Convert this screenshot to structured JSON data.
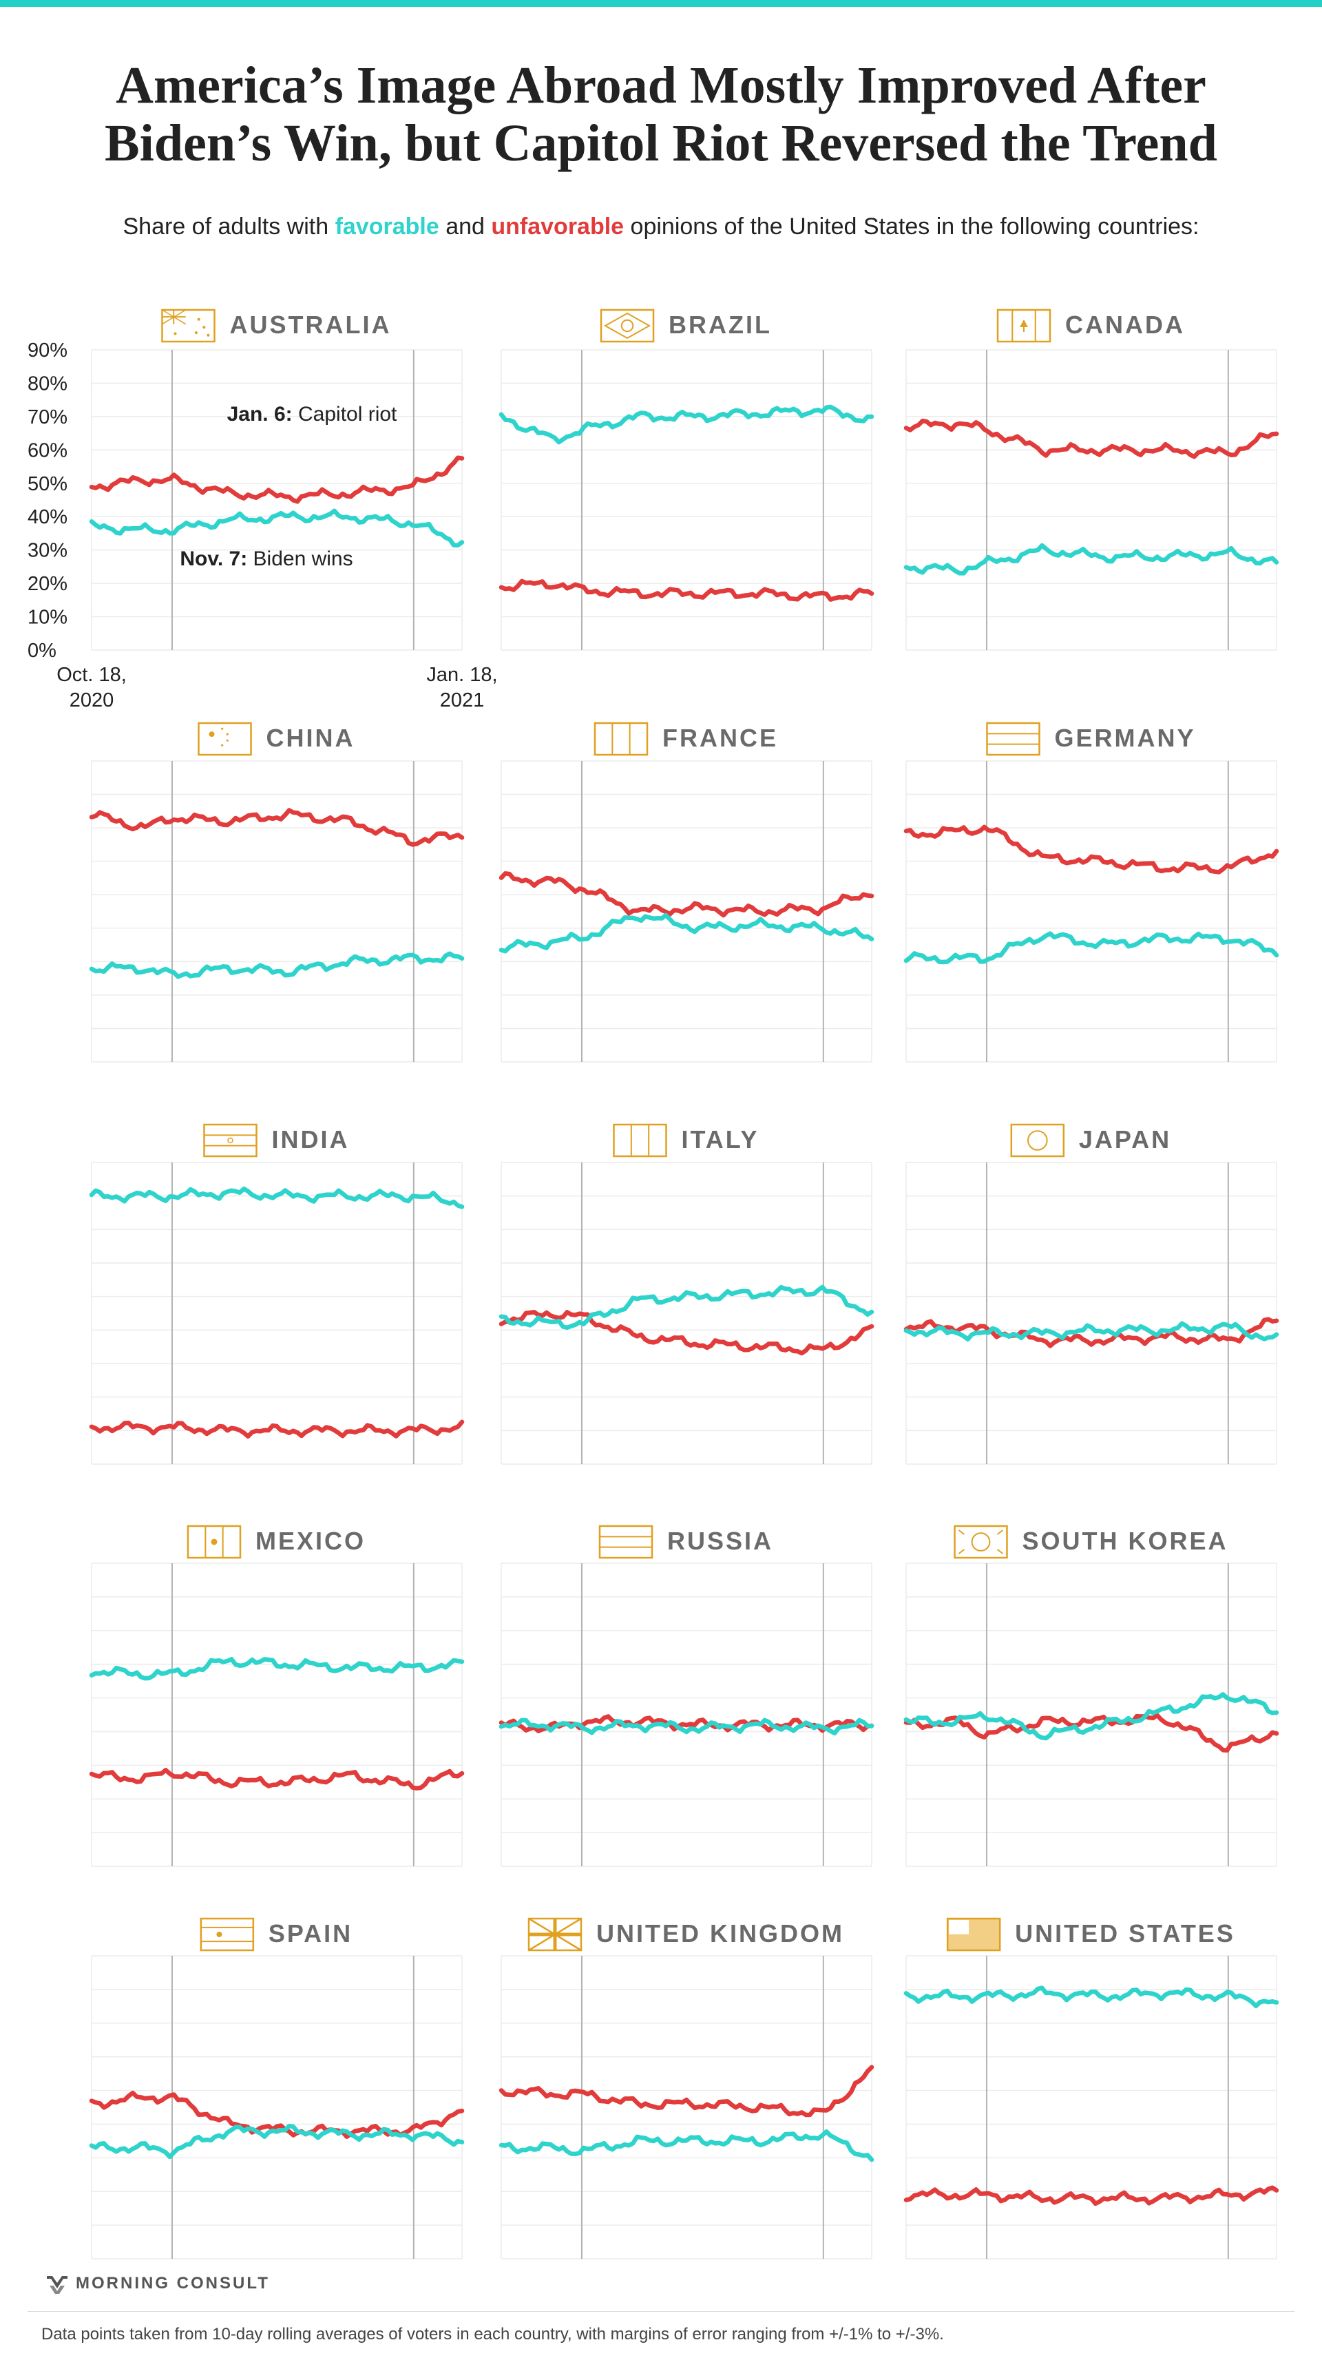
{
  "title_lines": [
    "America’s Image Abroad Mostly Improved After",
    "Biden’s Win, but Capitol Riot Reversed the Trend"
  ],
  "subtitle": {
    "prefix": "Share of adults with ",
    "favorable": "favorable",
    "middle": " and ",
    "unfavorable": "unfavorable",
    "suffix": " opinions of the United States in the following countries:"
  },
  "colors": {
    "favorable": "#2ed3cc",
    "unfavorable": "#e23b3b",
    "accent_bar": "#22d0c8",
    "flag": "#e0a020",
    "country_label": "#6a6a6a",
    "grid": "#ececec",
    "event_line": "#b3b3b3"
  },
  "annotations": {
    "jan6_bold": "Jan. 6:",
    "jan6_text": " Capitol riot",
    "nov7_bold": "Nov. 7:",
    "nov7_text": " Biden wins"
  },
  "logo": {
    "text": "MORNING CONSULT",
    "icon": "morning-consult-logo-icon"
  },
  "footnote": "Data points taken from 10-day rolling averages of voters in each country, with margins of error ranging from +/-1% to +/-3%.",
  "chart_data": {
    "type": "line",
    "ylim": [
      0,
      90
    ],
    "y_ticks": [
      "0%",
      "10%",
      "20%",
      "30%",
      "40%",
      "50%",
      "60%",
      "70%",
      "80%",
      "90%"
    ],
    "x_range": [
      "2020-10-18",
      "2021-01-18"
    ],
    "x_tick_labels": [
      {
        "date": "2020-10-18",
        "line1": "Oct. 18,",
        "line2": "2020"
      },
      {
        "date": "2021-01-18",
        "line1": "Jan. 18,",
        "line2": "2021"
      }
    ],
    "event_dates": [
      "2020-11-07",
      "2021-01-06"
    ],
    "grid": true,
    "sample_dates": [
      "2020-10-18",
      "2020-10-31",
      "2020-11-07",
      "2020-11-21",
      "2020-12-06",
      "2020-12-21",
      "2021-01-06",
      "2021-01-18"
    ],
    "countries": [
      {
        "name": "AUSTRALIA",
        "flag": "australia-flag-icon",
        "favorable": [
          37,
          36,
          36,
          39,
          40,
          40,
          38,
          32
        ],
        "unfavorable": [
          49,
          51,
          51,
          47,
          46,
          47,
          49,
          57
        ]
      },
      {
        "name": "BRAZIL",
        "flag": "brazil-flag-icon",
        "favorable": [
          70,
          63,
          66,
          70,
          70,
          71,
          72,
          69
        ],
        "unfavorable": [
          19,
          20,
          18,
          17,
          17,
          17,
          16,
          17
        ]
      },
      {
        "name": "CANADA",
        "flag": "canada-flag-icon",
        "favorable": [
          25,
          24,
          26,
          30,
          28,
          28,
          29,
          26
        ],
        "unfavorable": [
          67,
          68,
          66,
          60,
          60,
          60,
          59,
          65
        ]
      },
      {
        "name": "CHINA",
        "flag": "china-flag-icon",
        "favorable": [
          28,
          28,
          26,
          28,
          27,
          30,
          31,
          31
        ],
        "unfavorable": [
          74,
          70,
          73,
          72,
          74,
          72,
          66,
          68
        ]
      },
      {
        "name": "FRANCE",
        "flag": "france-flag-icon",
        "favorable": [
          34,
          36,
          37,
          44,
          40,
          41,
          40,
          37
        ],
        "unfavorable": [
          55,
          54,
          52,
          45,
          46,
          45,
          46,
          51
        ]
      },
      {
        "name": "GERMANY",
        "flag": "germany-flag-icon",
        "favorable": [
          31,
          31,
          31,
          38,
          35,
          37,
          37,
          33
        ],
        "unfavorable": [
          68,
          69,
          70,
          61,
          60,
          58,
          58,
          63
        ]
      },
      {
        "name": "INDIA",
        "flag": "india-flag-icon",
        "favorable": [
          80,
          80,
          80,
          81,
          80,
          80,
          80,
          78
        ],
        "unfavorable": [
          11,
          11,
          11,
          10,
          10,
          10,
          10,
          11
        ]
      },
      {
        "name": "ITALY",
        "flag": "italy-flag-icon",
        "favorable": [
          43,
          42,
          42,
          49,
          50,
          51,
          52,
          45
        ],
        "unfavorable": [
          43,
          45,
          44,
          38,
          36,
          35,
          34,
          40
        ]
      },
      {
        "name": "JAPAN",
        "flag": "japan-flag-icon",
        "favorable": [
          40,
          39,
          39,
          39,
          40,
          40,
          41,
          37
        ],
        "unfavorable": [
          41,
          41,
          40,
          37,
          37,
          38,
          37,
          43
        ]
      },
      {
        "name": "MEXICO",
        "flag": "mexico-flag-icon",
        "favorable": [
          58,
          57,
          57,
          61,
          60,
          59,
          59,
          60
        ],
        "unfavorable": [
          27,
          26,
          28,
          25,
          25,
          27,
          24,
          28
        ]
      },
      {
        "name": "RUSSIA",
        "flag": "russia-flag-icon",
        "favorable": [
          42,
          42,
          41,
          42,
          41,
          42,
          41,
          42
        ],
        "unfavorable": [
          42,
          41,
          43,
          43,
          42,
          42,
          42,
          42
        ]
      },
      {
        "name": "SOUTH KOREA",
        "flag": "south-korea-flag-icon",
        "favorable": [
          43,
          43,
          45,
          39,
          42,
          46,
          51,
          46
        ],
        "unfavorable": [
          42,
          43,
          39,
          43,
          43,
          44,
          35,
          40
        ]
      },
      {
        "name": "SPAIN",
        "flag": "spain-flag-icon",
        "favorable": [
          33,
          33,
          32,
          38,
          38,
          37,
          37,
          35
        ],
        "unfavorable": [
          46,
          48,
          48,
          40,
          38,
          38,
          38,
          44
        ]
      },
      {
        "name": "UNITED KINGDOM",
        "flag": "united-kingdom-flag-icon",
        "favorable": [
          33,
          33,
          32,
          35,
          35,
          35,
          37,
          30
        ],
        "unfavorable": [
          50,
          49,
          49,
          46,
          46,
          45,
          43,
          56
        ]
      },
      {
        "name": "UNITED STATES",
        "flag": "united-states-flag-icon",
        "favorable": [
          78,
          78,
          78,
          79,
          78,
          79,
          78,
          76
        ],
        "unfavorable": [
          19,
          19,
          19,
          18,
          18,
          18,
          19,
          20
        ]
      }
    ]
  }
}
